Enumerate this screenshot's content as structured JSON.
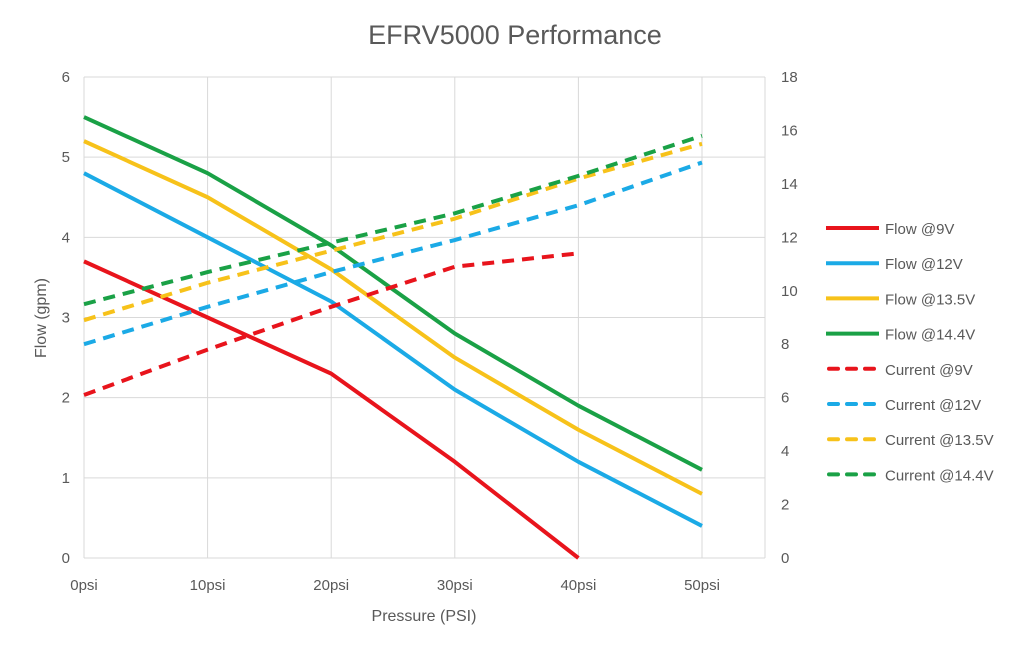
{
  "chart_data": {
    "type": "line",
    "title": "EFRV5000 Performance",
    "xlabel": "Pressure (PSI)",
    "ylabel": "Flow (gpm)",
    "y2label": "",
    "categories": [
      "0psi",
      "10psi",
      "20psi",
      "30psi",
      "40psi",
      "50psi"
    ],
    "x": [
      0,
      10,
      20,
      30,
      40,
      50
    ],
    "ylim": [
      0,
      6
    ],
    "yticks": [
      "0",
      "1",
      "2",
      "3",
      "4",
      "5",
      "6"
    ],
    "y2lim": [
      0,
      18
    ],
    "y2ticks": [
      "0",
      "2",
      "4",
      "6",
      "8",
      "10",
      "12",
      "14",
      "16",
      "18"
    ],
    "grid": true,
    "legend_position": "right",
    "series": [
      {
        "name": "Flow @9V",
        "axis": "left",
        "style": "solid",
        "color": "#E8141C",
        "values": [
          3.7,
          3.0,
          2.3,
          1.2,
          0.0,
          null
        ]
      },
      {
        "name": "Flow @12V",
        "axis": "left",
        "style": "solid",
        "color": "#1BAAE6",
        "values": [
          4.8,
          4.0,
          3.2,
          2.1,
          1.2,
          0.4
        ]
      },
      {
        "name": "Flow @13.5V",
        "axis": "left",
        "style": "solid",
        "color": "#F7C21A",
        "values": [
          5.2,
          4.5,
          3.6,
          2.5,
          1.6,
          0.8
        ]
      },
      {
        "name": "Flow @14.4V",
        "axis": "left",
        "style": "solid",
        "color": "#1AA146",
        "values": [
          5.5,
          4.8,
          3.9,
          2.8,
          1.9,
          1.1
        ]
      },
      {
        "name": "Current @9V",
        "axis": "right",
        "style": "dashed",
        "color": "#E8141C",
        "values": [
          6.1,
          7.8,
          9.4,
          10.9,
          11.4,
          null
        ]
      },
      {
        "name": "Current @12V",
        "axis": "right",
        "style": "dashed",
        "color": "#1BAAE6",
        "values": [
          8.0,
          9.4,
          10.7,
          11.9,
          13.2,
          14.8
        ]
      },
      {
        "name": "Current @13.5V",
        "axis": "right",
        "style": "dashed",
        "color": "#F7C21A",
        "values": [
          8.9,
          10.3,
          11.5,
          12.7,
          14.2,
          15.5
        ]
      },
      {
        "name": "Current @14.4V",
        "axis": "right",
        "style": "dashed",
        "color": "#1AA146",
        "values": [
          9.5,
          10.7,
          11.8,
          12.9,
          14.3,
          15.8
        ]
      }
    ]
  }
}
